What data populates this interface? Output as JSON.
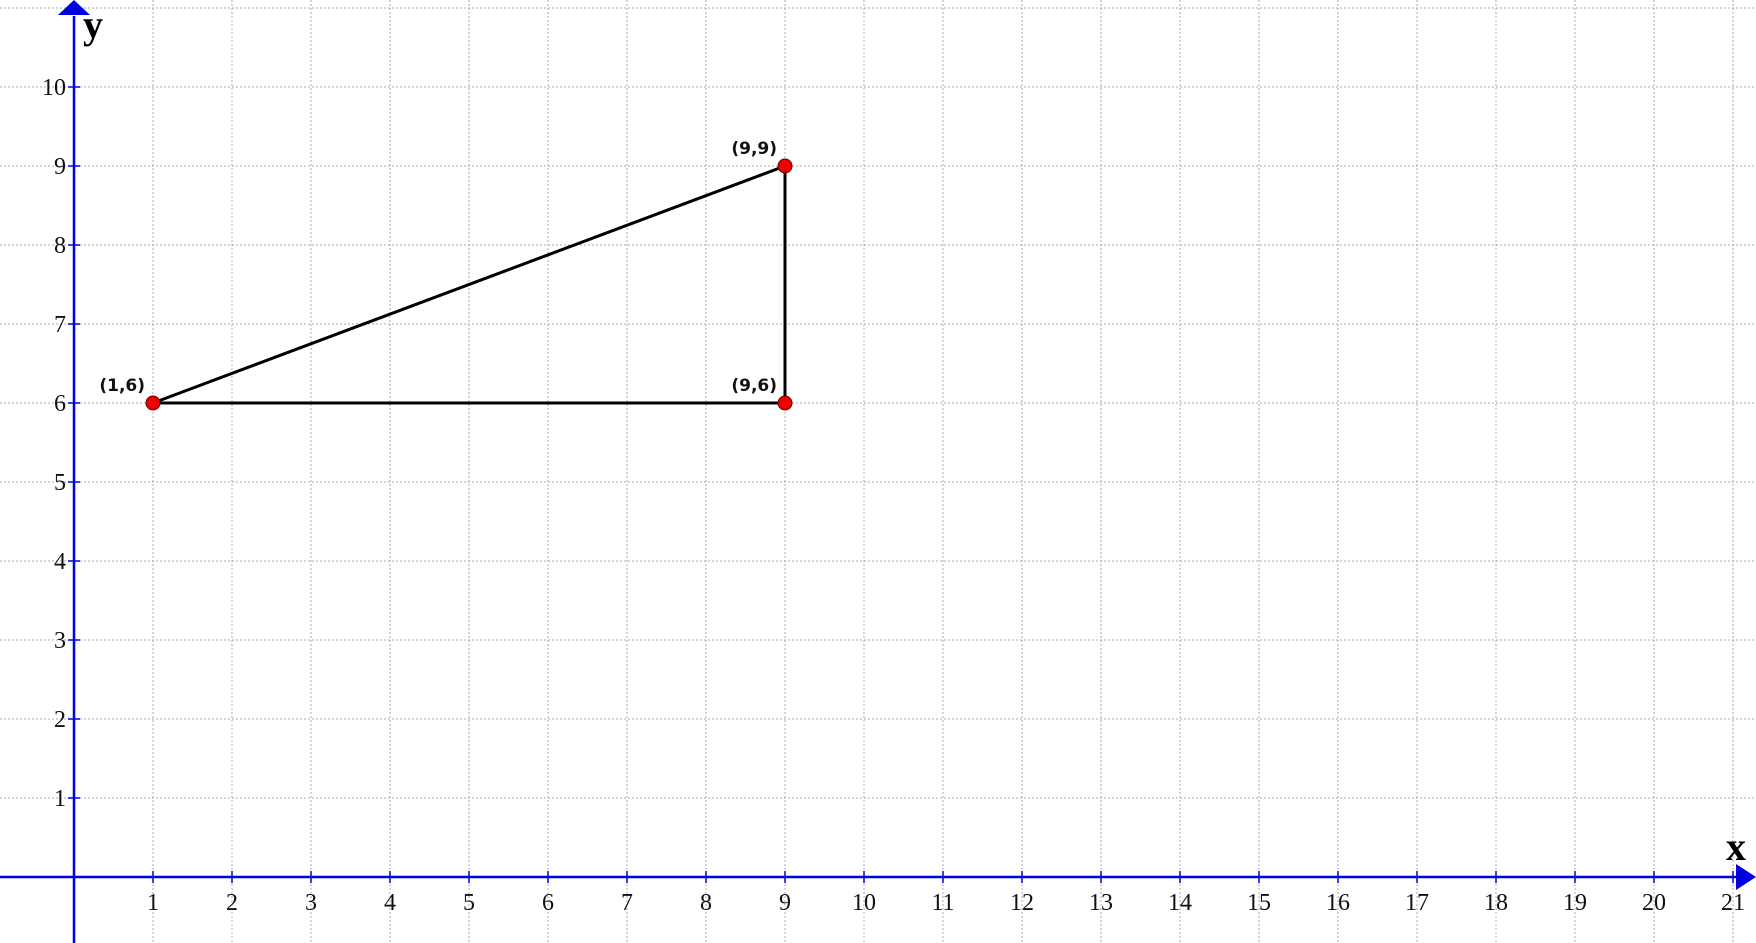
{
  "chart_data": {
    "type": "scatter",
    "xlabel": "x",
    "ylabel": "y",
    "xlim": [
      -0.9,
      21.3
    ],
    "ylim": [
      -0.84,
      11.1
    ],
    "x_ticks": [
      1,
      2,
      3,
      4,
      5,
      6,
      7,
      8,
      9,
      10,
      11,
      12,
      13,
      14,
      15,
      16,
      17,
      18,
      19,
      20,
      21
    ],
    "y_ticks": [
      1,
      2,
      3,
      4,
      5,
      6,
      7,
      8,
      9,
      10
    ],
    "grid": true,
    "points": [
      {
        "x": 1,
        "y": 6,
        "label": "(1,6)"
      },
      {
        "x": 9,
        "y": 6,
        "label": "(9,6)"
      },
      {
        "x": 9,
        "y": 9,
        "label": "(9,9)"
      }
    ],
    "polygon": [
      [
        1,
        6
      ],
      [
        9,
        6
      ],
      [
        9,
        9
      ]
    ],
    "colors": {
      "axis": "#0000e0",
      "grid": "#a8a8b8",
      "point": "#ee0000",
      "segment": "#000000"
    }
  }
}
